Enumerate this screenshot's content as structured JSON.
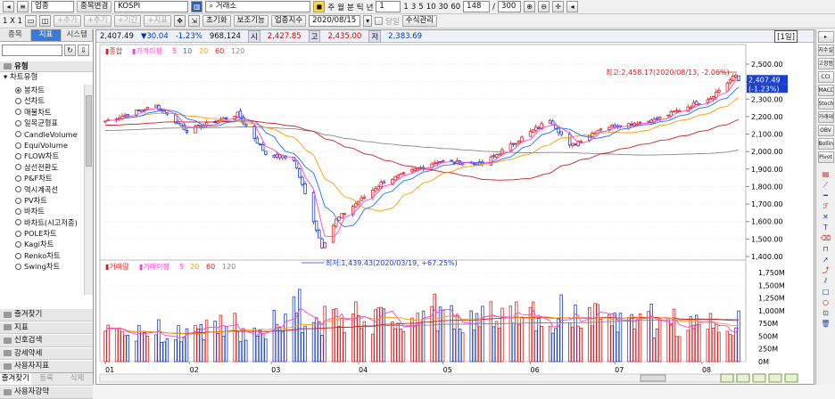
{
  "toolbar1": {
    "market_label": "업종",
    "change_btn": "종목변경",
    "symbol": "KOSPI",
    "search_value": "거래소",
    "period_buttons": [
      "주",
      "월",
      "분",
      "틱",
      "년"
    ],
    "count_select": "1",
    "quick_counts": [
      "1",
      "3",
      "5",
      "10",
      "30",
      "60"
    ],
    "range_current": "148",
    "range_sep": "/",
    "range_total": "300"
  },
  "toolbar2": {
    "layout_label": "1 X 1",
    "add_btn": "+추가",
    "add_btn2": "+추기",
    "period_btn": "+기간",
    "indicator_btn": "+지표",
    "reset_btn": "초기화",
    "aux_btn": "보조기능",
    "sector_btn": "업종지수",
    "date_value": "2020/08/15",
    "today_label": "당일",
    "formula_btn": "수식관리"
  },
  "left_panel": {
    "tabs": [
      "종목",
      "지표",
      "시스템"
    ],
    "active_tab": "지표",
    "groups_top": [
      "유형"
    ],
    "tree_header": "차트유형",
    "tree_items": [
      "봉차트",
      "선차트",
      "매물차트",
      "일목균형표",
      "CandleVolume",
      "EquiVolume",
      "FLOW차트",
      "삼선전환도",
      "P&F차트",
      "역시계곡선",
      "PV차트",
      "바차트",
      "바차트(시고저종)",
      "POLE차트",
      "Kagi차트",
      "Renko차트",
      "Swing차트"
    ],
    "selected_item": "봉차트",
    "groups_bottom": [
      "즐겨찾기",
      "지표",
      "신호검색",
      "강세약세",
      "사용자지표",
      "사용자신호",
      "사용자강약"
    ],
    "bottom_tabs": [
      "즐겨찾기",
      "등록",
      "삭제"
    ]
  },
  "info_bar": {
    "current": "2,407.49",
    "change": "▼30.04",
    "change_pct": "-1.23%",
    "volume": "968,124",
    "open_label": "시",
    "open": "2,427.85",
    "high_label": "고",
    "high": "2,435.00",
    "low_label": "저",
    "low": "2,383.69",
    "period_badge": "[1일]"
  },
  "price_panel": {
    "legend": [
      "종합",
      "가격이평",
      "5",
      "10",
      "20",
      "60",
      "120"
    ],
    "high_note": "최고:2,458.17(2020/08/13, -2.06%)",
    "low_note": "최저:1,439.43(2020/03/19, +67.25%)",
    "price_tag": "2,407.49",
    "pct_tag": "(-1.23%)",
    "y_labels": [
      "2,500.00",
      "2,400.00",
      "2,300.00",
      "2,200.00",
      "2,100.00",
      "2,000.00",
      "1,900.00",
      "1,800.00",
      "1,700.00",
      "1,600.00",
      "1,500.00",
      "1,400.00"
    ]
  },
  "volume_panel": {
    "legend": [
      "거래량",
      "거래이평",
      "5",
      "20",
      "60",
      "120"
    ],
    "y_labels": [
      "1,750M",
      "1,500M",
      "1,250M",
      "1,000M",
      "750M",
      "500M",
      "250M",
      "0M"
    ]
  },
  "x_labels": [
    "01",
    "02",
    "03",
    "04",
    "05",
    "06",
    "07",
    "08"
  ],
  "right_panel": {
    "buttons": [
      "지수설정",
      "고정범위",
      "CCI",
      "MACD",
      "Stoch",
      "거래대금",
      "OBV",
      "Bollinger",
      "Pivot"
    ]
  },
  "colors": {
    "up": "#e02020",
    "down": "#1a3fd0",
    "ma5": "#ff3fd0",
    "ma10": "#1e6fff",
    "ma20": "#ff9a00",
    "ma60": "#cc2020",
    "ma120": "#888888",
    "accent": "#3a7bd5"
  },
  "chart_data": {
    "type": "candlestick",
    "title": "KOSPI",
    "x_range": [
      "2020/01/02",
      "2020/08/14"
    ],
    "ylim_price": [
      1400,
      2500
    ],
    "ylim_volume": [
      0,
      1750
    ],
    "volume_unit": "M",
    "anchors": [
      {
        "date": "2020/01/02",
        "close": 2175
      },
      {
        "date": "2020/01/20",
        "close": 2262
      },
      {
        "date": "2020/01/31",
        "close": 2120
      },
      {
        "date": "2020/02/18",
        "close": 2215
      },
      {
        "date": "2020/02/28",
        "close": 1987
      },
      {
        "date": "2020/03/09",
        "close": 1955
      },
      {
        "date": "2020/03/19",
        "close": 1458
      },
      {
        "date": "2020/03/24",
        "close": 1610
      },
      {
        "date": "2020/04/09",
        "close": 1820
      },
      {
        "date": "2020/04/29",
        "close": 1945
      },
      {
        "date": "2020/05/15",
        "close": 1930
      },
      {
        "date": "2020/06/08",
        "close": 2185
      },
      {
        "date": "2020/06/15",
        "close": 2030
      },
      {
        "date": "2020/06/26",
        "close": 2135
      },
      {
        "date": "2020/07/15",
        "close": 2180
      },
      {
        "date": "2020/08/04",
        "close": 2310
      },
      {
        "date": "2020/08/13",
        "close": 2437
      },
      {
        "date": "2020/08/14",
        "close": 2407
      }
    ],
    "moving_averages": [
      "5",
      "10",
      "20",
      "60",
      "120"
    ],
    "volume_levels": [
      {
        "period": "2020-01",
        "avg": 560,
        "max": 880
      },
      {
        "period": "2020-02",
        "avg": 650,
        "max": 1050
      },
      {
        "period": "2020-03",
        "avg": 860,
        "max": 1500
      },
      {
        "period": "2020-04",
        "avg": 900,
        "max": 1400
      },
      {
        "period": "2020-05",
        "avg": 940,
        "max": 1660
      },
      {
        "period": "2020-06",
        "avg": 900,
        "max": 1350
      },
      {
        "period": "2020-07",
        "avg": 760,
        "max": 1150
      },
      {
        "period": "2020-08",
        "avg": 830,
        "max": 1250
      }
    ],
    "notes": {
      "high": "2,458.17 (2020/08/13)",
      "low": "1,439.43 (2020/03/19)"
    }
  }
}
